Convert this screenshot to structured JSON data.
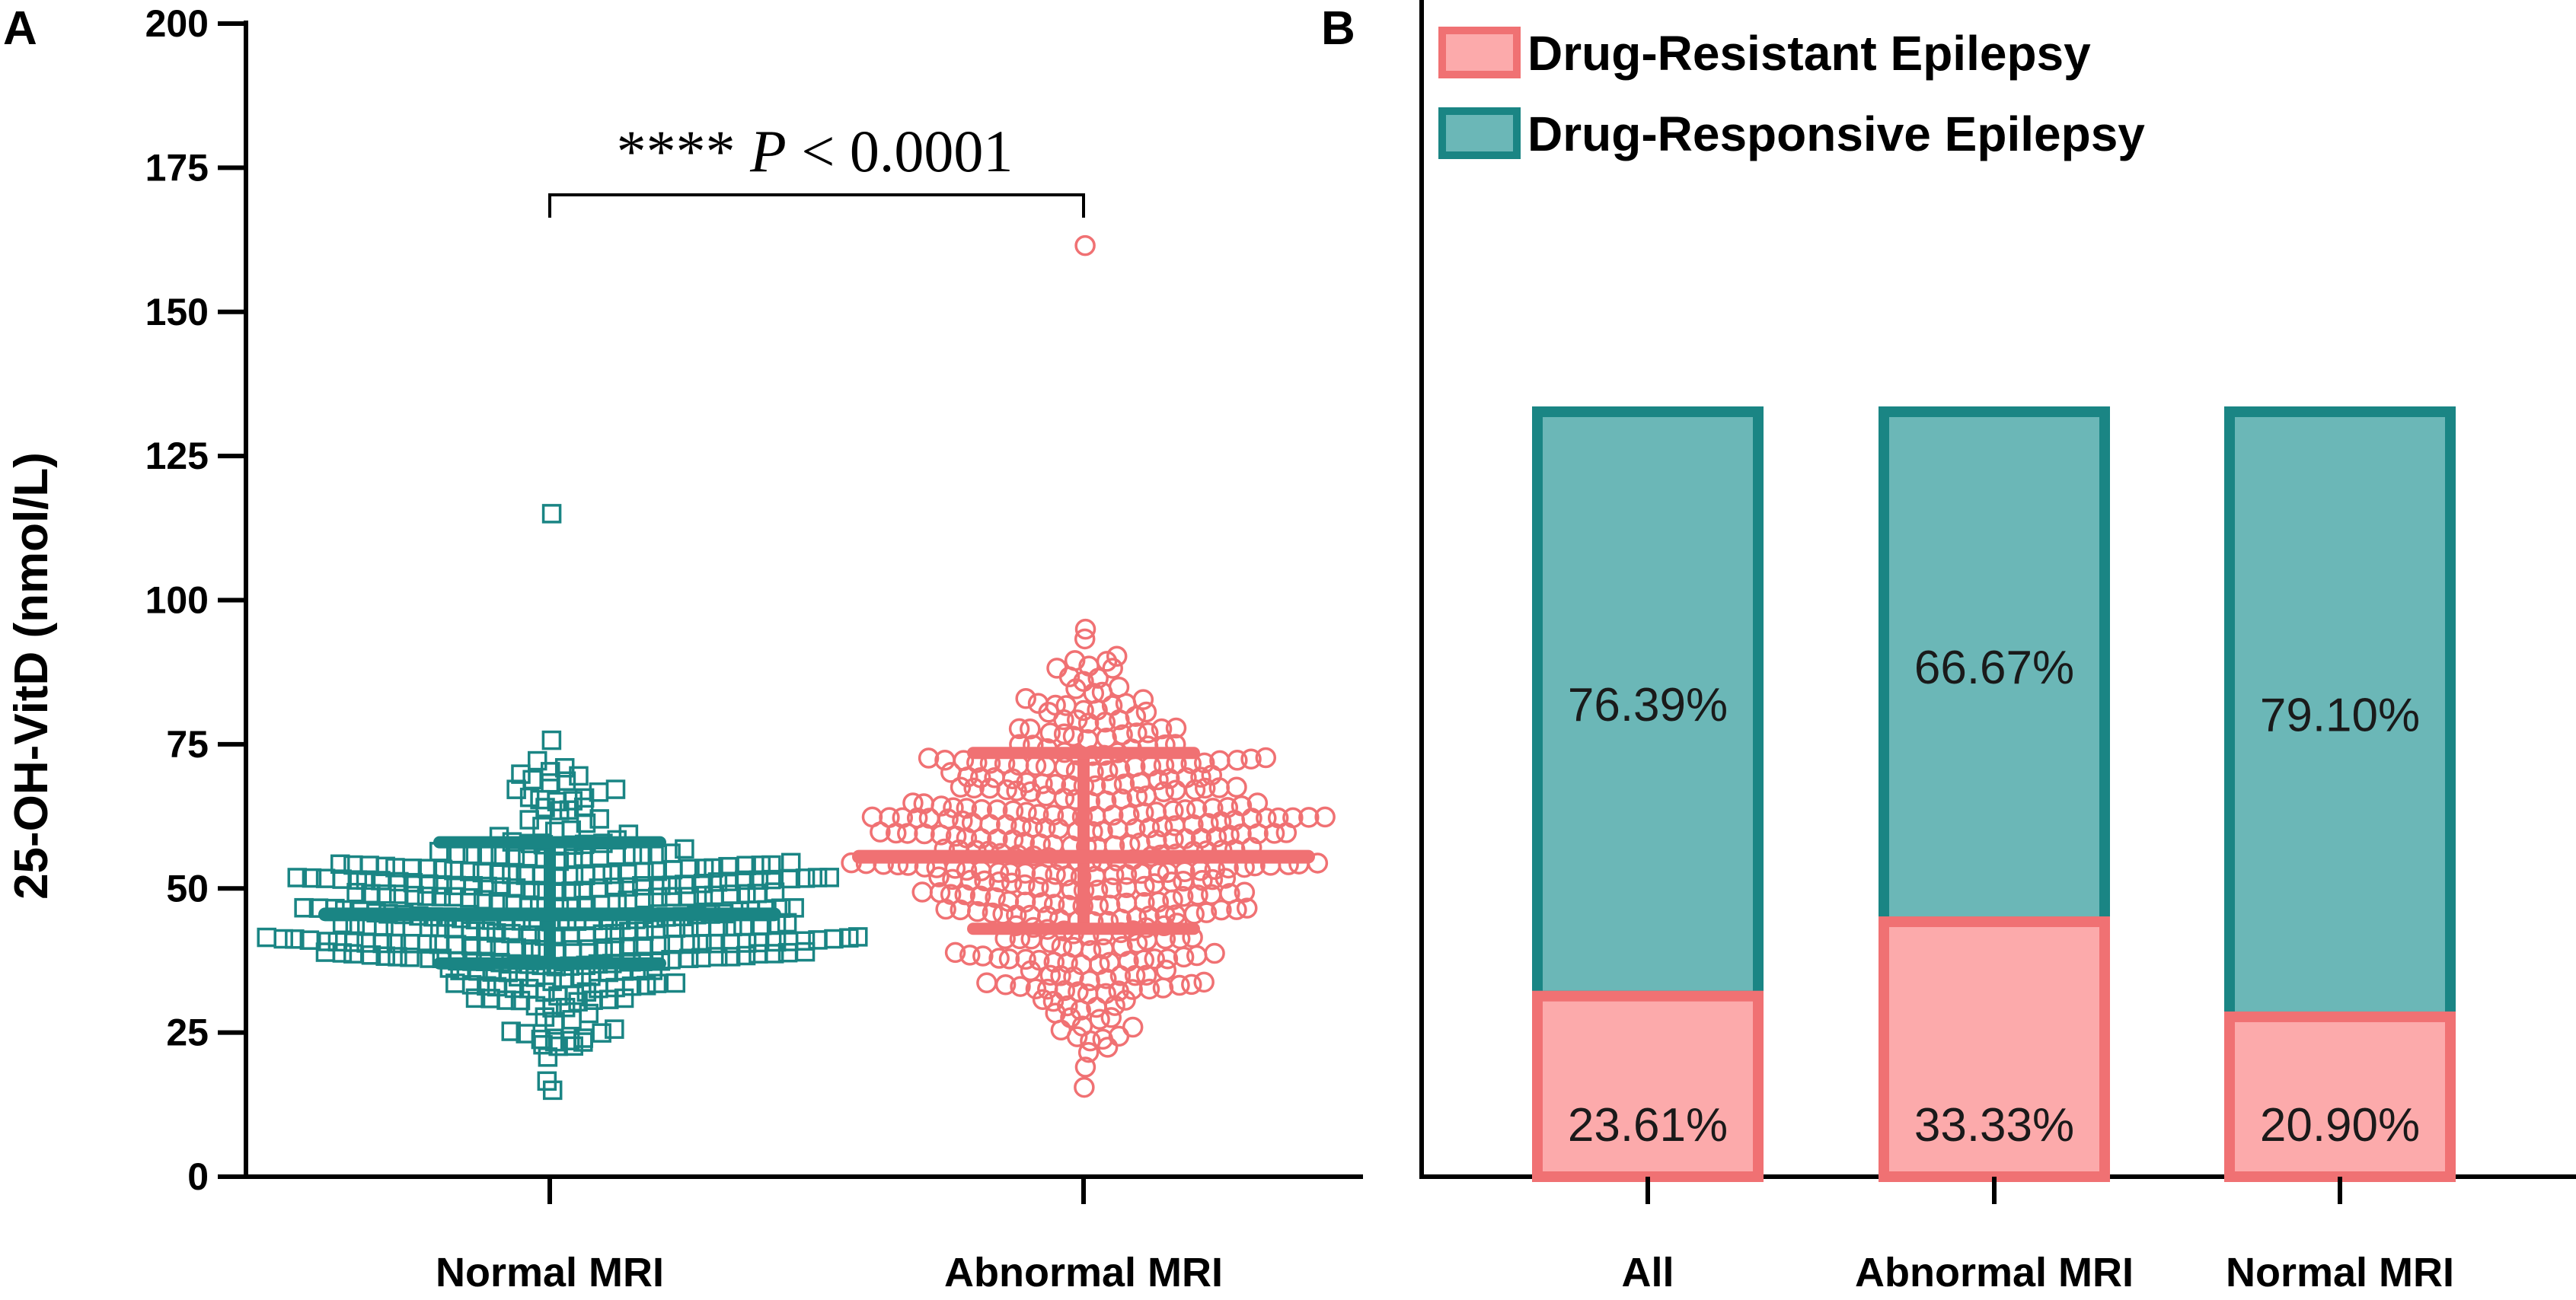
{
  "panels": {
    "a_letter": "A",
    "b_letter": "B"
  },
  "chart_data": [
    {
      "type": "scatter",
      "title": "",
      "ylabel": "25-OH-VitD (nmol/L)",
      "xlabel": "",
      "ylim": [
        0,
        200
      ],
      "yticks": [
        "0",
        "25",
        "50",
        "75",
        "100",
        "125",
        "150",
        "175",
        "200"
      ],
      "categories": [
        "Normal MRI",
        "Abnormal MRI"
      ],
      "series": [
        {
          "name": "Normal MRI",
          "marker": "square",
          "color": "#1a8584",
          "n": 360,
          "mean": 45.5,
          "sd_low": 37.0,
          "sd_high": 58.0,
          "min": 15.0,
          "max": 115.0
        },
        {
          "name": "Abnormal MRI",
          "marker": "circle",
          "color": "#f07173",
          "n": 420,
          "mean": 55.5,
          "sd_low": 43.0,
          "sd_high": 73.5,
          "min": 15.5,
          "max": 161.5
        }
      ],
      "annotation": {
        "stars": "****",
        "p_symbol": "P",
        "p_operator": "<",
        "p_value": "0.0001"
      }
    },
    {
      "type": "bar",
      "stacked": true,
      "normalized_percent": true,
      "categories": [
        "All",
        "Abnormal MRI",
        "Normal MRI"
      ],
      "series": [
        {
          "name": "Drug-Resistant Epilepsy",
          "values": [
            23.61,
            33.33,
            20.9
          ],
          "labels": [
            "23.61%",
            "33.33%",
            "20.90%"
          ],
          "fill": "#fcaaab",
          "stroke": "#f07173"
        },
        {
          "name": "Drug-Responsive Epilepsy",
          "values": [
            76.39,
            66.67,
            79.1
          ],
          "labels": [
            "76.39%",
            "66.67%",
            "79.10%"
          ],
          "fill": "#6bb7b7",
          "stroke": "#1a8584"
        }
      ],
      "legend_position": "top-left"
    }
  ]
}
